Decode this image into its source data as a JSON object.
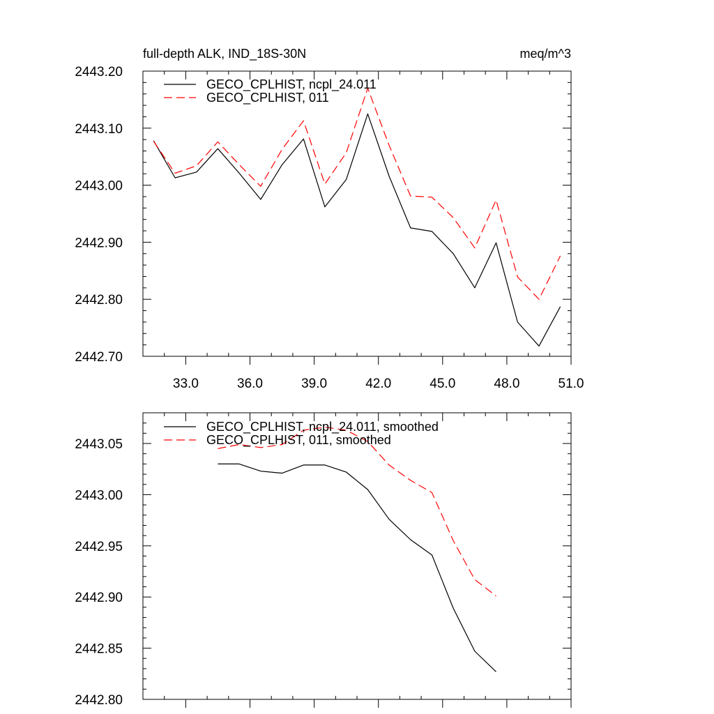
{
  "chart_data": [
    {
      "type": "line",
      "title_left": "full-depth ALK, IND_18S-30N",
      "title_right": "meq/m^3",
      "xlabel": "",
      "ylabel": "",
      "xlim": [
        31.0,
        51.0
      ],
      "ylim": [
        2442.7,
        2443.2
      ],
      "x_ticks": [
        33.0,
        36.0,
        39.0,
        42.0,
        45.0,
        48.0,
        51.0
      ],
      "x_tick_labels": [
        "33.0",
        "36.0",
        "39.0",
        "42.0",
        "45.0",
        "48.0",
        "51.0"
      ],
      "y_ticks": [
        2442.7,
        2442.8,
        2442.9,
        2443.0,
        2443.1,
        2443.2
      ],
      "y_tick_labels": [
        "2442.70",
        "2442.80",
        "2442.90",
        "2443.00",
        "2443.10",
        "2443.20"
      ],
      "x_minor_step": 1.0,
      "y_minor_step": 0.02,
      "x": [
        31.5,
        32.5,
        33.5,
        34.5,
        35.5,
        36.5,
        37.5,
        38.5,
        39.5,
        40.5,
        41.5,
        42.5,
        43.5,
        44.5,
        45.5,
        46.5,
        47.5,
        48.5,
        49.5,
        50.5
      ],
      "series": [
        {
          "name": "GECO_CPLHIST, ncpl_24.011",
          "color": "#000000",
          "dash": "solid",
          "values": [
            2443.078,
            2443.013,
            2443.023,
            2443.064,
            2443.021,
            2442.975,
            2443.036,
            2443.081,
            2442.962,
            2443.01,
            2443.125,
            2443.016,
            2442.925,
            2442.919,
            2442.88,
            2442.82,
            2442.899,
            2442.76,
            2442.718,
            2442.787
          ]
        },
        {
          "name": "GECO_CPLHIST, 011",
          "color": "#ff0000",
          "dash": "dashed",
          "values": [
            2443.077,
            2443.021,
            2443.034,
            2443.076,
            2443.036,
            2442.998,
            2443.063,
            2443.113,
            2443.002,
            2443.057,
            2443.17,
            2443.07,
            2442.981,
            2442.979,
            2442.943,
            2442.89,
            2442.974,
            2442.839,
            2442.8,
            2442.876
          ]
        }
      ],
      "legend": {
        "position": "top-left"
      }
    },
    {
      "type": "line",
      "title_left": "",
      "title_right": "",
      "xlabel": "",
      "ylabel": "",
      "xlim": [
        31.0,
        51.0
      ],
      "ylim": [
        2442.8,
        2443.08
      ],
      "x_ticks": [
        33.0,
        36.0,
        39.0,
        42.0,
        45.0,
        48.0,
        51.0
      ],
      "x_tick_labels": [],
      "y_ticks": [
        2442.8,
        2442.85,
        2442.9,
        2442.95,
        2443.0,
        2443.05
      ],
      "y_tick_labels": [
        "2442.80",
        "2442.85",
        "2442.90",
        "2442.95",
        "2443.00",
        "2443.05"
      ],
      "x_minor_step": 1.0,
      "y_minor_step": 0.01,
      "x": [
        34.5,
        35.5,
        36.5,
        37.5,
        38.5,
        39.5,
        40.5,
        41.5,
        42.5,
        43.5,
        44.5,
        45.5,
        46.5,
        47.5
      ],
      "series": [
        {
          "name": "GECO_CPLHIST, ncpl_24.011, smoothed",
          "color": "#000000",
          "dash": "solid",
          "values": [
            2443.03,
            2443.03,
            2443.023,
            2443.021,
            2443.029,
            2443.029,
            2443.022,
            2443.005,
            2442.976,
            2442.956,
            2442.941,
            2442.889,
            2442.847,
            2442.827
          ]
        },
        {
          "name": "GECO_CPLHIST, 011, smoothed",
          "color": "#ff0000",
          "dash": "dashed",
          "values": [
            2443.045,
            2443.049,
            2443.046,
            2443.049,
            2443.063,
            2443.066,
            2443.063,
            2443.052,
            2443.029,
            2443.014,
            2443.002,
            2442.955,
            2442.917,
            2442.901
          ]
        }
      ],
      "legend": {
        "position": "top-left"
      }
    }
  ]
}
